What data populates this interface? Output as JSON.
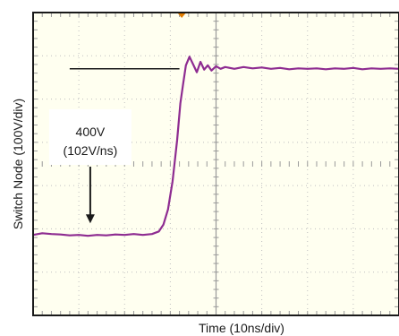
{
  "chart_data": {
    "type": "line",
    "xlabel": "Time (10ns/div)",
    "ylabel": "Switch Node (100V/div)",
    "x_divisions": 8,
    "y_divisions": 7,
    "xlim": [
      0,
      8
    ],
    "ylim": [
      -3.5,
      3.5
    ],
    "grid": true,
    "trigger_marker_x": 3.25,
    "series": [
      {
        "color": "#8e2c91",
        "points": [
          [
            0.0,
            -1.64
          ],
          [
            0.2,
            -1.6
          ],
          [
            0.4,
            -1.62
          ],
          [
            0.6,
            -1.63
          ],
          [
            0.8,
            -1.65
          ],
          [
            1.0,
            -1.64
          ],
          [
            1.2,
            -1.66
          ],
          [
            1.4,
            -1.64
          ],
          [
            1.6,
            -1.65
          ],
          [
            1.8,
            -1.63
          ],
          [
            2.0,
            -1.64
          ],
          [
            2.2,
            -1.62
          ],
          [
            2.4,
            -1.64
          ],
          [
            2.6,
            -1.62
          ],
          [
            2.75,
            -1.56
          ],
          [
            2.85,
            -1.4
          ],
          [
            2.95,
            -1.05
          ],
          [
            3.05,
            -0.4
          ],
          [
            3.15,
            0.55
          ],
          [
            3.22,
            1.4
          ],
          [
            3.28,
            1.85
          ],
          [
            3.34,
            2.28
          ],
          [
            3.42,
            2.48
          ],
          [
            3.5,
            2.3
          ],
          [
            3.58,
            2.12
          ],
          [
            3.66,
            2.36
          ],
          [
            3.74,
            2.18
          ],
          [
            3.82,
            2.28
          ],
          [
            3.9,
            2.16
          ],
          [
            4.0,
            2.26
          ],
          [
            4.1,
            2.2
          ],
          [
            4.2,
            2.24
          ],
          [
            4.4,
            2.2
          ],
          [
            4.6,
            2.24
          ],
          [
            4.8,
            2.21
          ],
          [
            5.0,
            2.23
          ],
          [
            5.2,
            2.2
          ],
          [
            5.4,
            2.22
          ],
          [
            5.6,
            2.19
          ],
          [
            5.8,
            2.21
          ],
          [
            6.0,
            2.2
          ],
          [
            6.2,
            2.21
          ],
          [
            6.4,
            2.19
          ],
          [
            6.6,
            2.21
          ],
          [
            6.8,
            2.2
          ],
          [
            7.0,
            2.22
          ],
          [
            7.2,
            2.19
          ],
          [
            7.4,
            2.21
          ],
          [
            7.6,
            2.2
          ],
          [
            7.8,
            2.21
          ],
          [
            8.0,
            2.2
          ]
        ]
      }
    ],
    "annotation": {
      "line1": "400V",
      "line2": "(102V/ns)",
      "top_level": 2.2,
      "bottom_level": -1.62,
      "arrow_x": 1.25,
      "ref_line_x_end": 3.2,
      "color": "#1a1a1a"
    },
    "colors": {
      "background": "#fffff0",
      "border": "#1a1a1a",
      "grid": "#bfbfbf",
      "axis_line": "#9a9a9a",
      "trigger": "#e07b00"
    }
  }
}
